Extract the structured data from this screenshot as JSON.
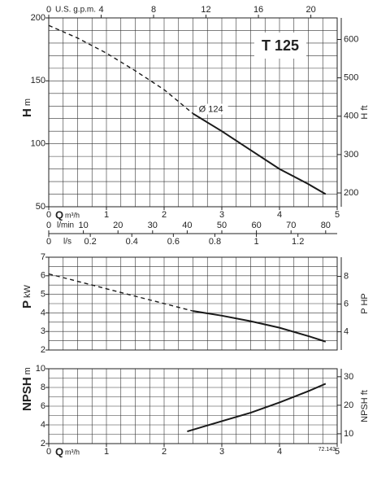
{
  "chart_data": [
    {
      "type": "line",
      "title": "T 125",
      "annotation": "Ø 124",
      "annotation_x": 2.6,
      "ylabel": "H",
      "yunit": "m",
      "y2label": "H ft",
      "xlim": [
        0,
        5
      ],
      "xlabel": "Q",
      "xunit": "m³/h",
      "xticks": [
        0,
        1,
        2,
        3,
        4,
        5
      ],
      "ylim": [
        50,
        200
      ],
      "yticks": [
        50,
        100,
        150,
        200
      ],
      "y2lim": [
        164.04,
        656.17
      ],
      "y2ticks": [
        200,
        300,
        400,
        500,
        600
      ],
      "x2axes": [
        {
          "label": "U.S. g.p.m.",
          "lim": [
            0,
            22.01
          ],
          "ticks": [
            0,
            4,
            8,
            12,
            16,
            20
          ]
        },
        {
          "label": "l/min",
          "lim": [
            0,
            83.33
          ],
          "ticks": [
            0,
            10,
            20,
            30,
            40,
            50,
            60,
            70,
            80
          ]
        },
        {
          "label": "l/s",
          "lim": [
            0,
            1.389
          ],
          "ticks": [
            0,
            0.2,
            0.4,
            0.6,
            0.8,
            1,
            1.2
          ]
        }
      ],
      "x": [
        0,
        0.5,
        1,
        1.5,
        2,
        2.5,
        3,
        3.5,
        4,
        4.5,
        4.8
      ],
      "values": [
        194,
        184,
        172,
        158,
        143,
        124,
        110,
        95,
        80,
        68,
        60
      ],
      "dashed_below_x": 2.5,
      "color": "#1a1a1a",
      "grid": {
        "x": 0.25,
        "y": 10
      }
    },
    {
      "type": "line",
      "ylabel": "P",
      "yunit": "kW",
      "y2label": "P HP",
      "xlim": [
        0,
        5
      ],
      "ylim": [
        2,
        7
      ],
      "yticks": [
        2,
        3,
        4,
        5,
        6,
        7
      ],
      "y2lim": [
        2.682,
        9.387
      ],
      "y2ticks": [
        4,
        6,
        8
      ],
      "x": [
        0,
        0.5,
        1,
        1.5,
        2,
        2.5,
        3,
        3.5,
        4,
        4.5,
        4.8
      ],
      "values": [
        6.1,
        5.7,
        5.3,
        4.9,
        4.5,
        4.1,
        3.85,
        3.55,
        3.2,
        2.75,
        2.45
      ],
      "dashed_below_x": 2.5,
      "color": "#1a1a1a",
      "grid": {
        "x": 0.25,
        "y": 0.5
      }
    },
    {
      "type": "line",
      "ylabel": "NPSH",
      "yunit": "m",
      "y2label": "NPSH ft",
      "note": "72.143",
      "xlim": [
        0,
        5
      ],
      "xlabel": "Q",
      "xunit": "m³/h",
      "xticks": [
        0,
        1,
        2,
        3,
        4,
        5
      ],
      "ylim": [
        2,
        10
      ],
      "yticks": [
        2,
        4,
        6,
        8,
        10
      ],
      "y2lim": [
        6.56,
        32.81
      ],
      "y2ticks": [
        10,
        20,
        30
      ],
      "x": [
        2.4,
        3,
        3.5,
        4,
        4.5,
        4.8
      ],
      "values": [
        3.3,
        4.4,
        5.3,
        6.4,
        7.6,
        8.4
      ],
      "color": "#1a1a1a",
      "grid": {
        "x": 0.25,
        "y": 1
      }
    }
  ]
}
